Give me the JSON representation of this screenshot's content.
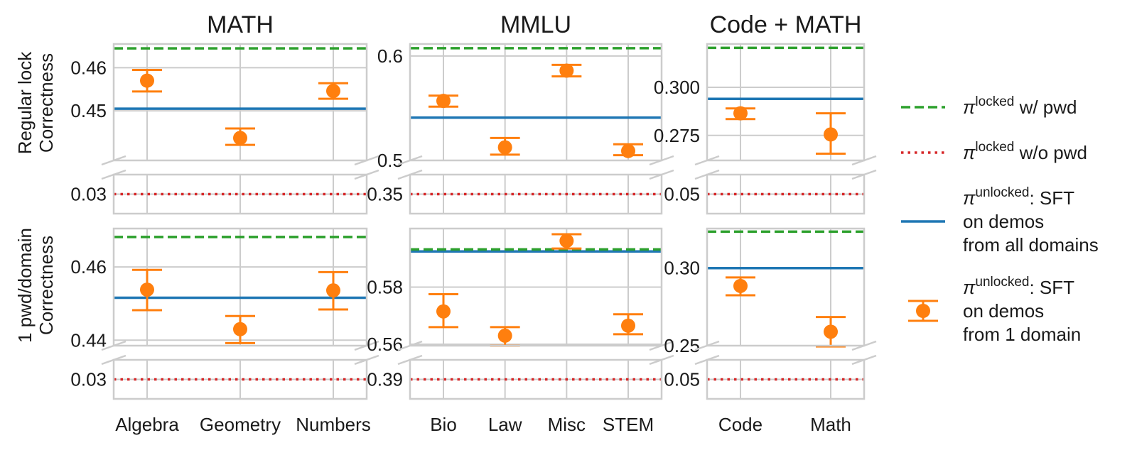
{
  "chart_data": {
    "type": "scatter",
    "description_free": true,
    "column_titles": [
      "MATH",
      "MMLU",
      "Code + MATH"
    ],
    "row_labels": [
      [
        "Regular lock",
        "Correctness"
      ],
      [
        "1 pwd/domain",
        "Correctness"
      ]
    ],
    "colors": {
      "locked_with_pwd": "#2ca02c",
      "locked_without_pwd": "#d62728",
      "unlocked_all": "#1f77b4",
      "unlocked_one": "#ff7f0e",
      "grid": "#cccccc"
    },
    "panels": [
      {
        "row": 0,
        "col": 0,
        "categories": [
          "Algebra",
          "Geometry",
          "Numbers"
        ],
        "upper_ylim": [
          0.4385,
          0.4655
        ],
        "upper_ticks": [
          "0.45",
          "0.46"
        ],
        "upper_tick_values": [
          0.45,
          0.46
        ],
        "lower_ylim": [
          0.0285,
          0.0315
        ],
        "lower_ticks": [
          "0.03"
        ],
        "lower_tick_values": [
          0.03
        ],
        "locked_with_pwd": 0.4645,
        "locked_without_pwd": 0.03,
        "unlocked_all": 0.4505,
        "points": [
          {
            "value": 0.457,
            "err_low": 0.4545,
            "err_high": 0.4595
          },
          {
            "value": 0.4437,
            "err_low": 0.4421,
            "err_high": 0.4459
          },
          {
            "value": 0.4546,
            "err_low": 0.4528,
            "err_high": 0.4564
          }
        ]
      },
      {
        "row": 0,
        "col": 1,
        "categories": [
          "Bio",
          "Law",
          "Misc",
          "STEM"
        ],
        "upper_ylim": [
          0.5,
          0.6115
        ],
        "upper_ticks": [
          "0.5",
          "0.6"
        ],
        "upper_tick_values": [
          0.5,
          0.6
        ],
        "lower_ylim": [
          0.34,
          0.36
        ],
        "lower_ticks": [
          "0.35"
        ],
        "lower_tick_values": [
          0.35
        ],
        "locked_with_pwd": 0.6075,
        "locked_without_pwd": 0.35,
        "unlocked_all": 0.541,
        "points": [
          {
            "value": 0.557,
            "err_low": 0.5515,
            "err_high": 0.562
          },
          {
            "value": 0.5125,
            "err_low": 0.5055,
            "err_high": 0.5215
          },
          {
            "value": 0.586,
            "err_low": 0.5805,
            "err_high": 0.5915
          },
          {
            "value": 0.509,
            "err_low": 0.505,
            "err_high": 0.5155
          }
        ]
      },
      {
        "row": 0,
        "col": 2,
        "categories": [
          "Code",
          "Math"
        ],
        "upper_ylim": [
          0.262,
          0.3225
        ],
        "upper_ticks": [
          "0.275",
          "0.300"
        ],
        "upper_tick_values": [
          0.275,
          0.3
        ],
        "lower_ylim": [
          0.045,
          0.055
        ],
        "lower_ticks": [
          "0.05"
        ],
        "lower_tick_values": [
          0.05
        ],
        "locked_with_pwd": 0.3205,
        "locked_without_pwd": 0.05,
        "unlocked_all": 0.294,
        "points": [
          {
            "value": 0.2865,
            "err_low": 0.2835,
            "err_high": 0.289
          },
          {
            "value": 0.2755,
            "err_low": 0.2655,
            "err_high": 0.2865
          }
        ]
      },
      {
        "row": 1,
        "col": 0,
        "categories": [
          "Algebra",
          "Geometry",
          "Numbers"
        ],
        "upper_ylim": [
          0.4385,
          0.4705
        ],
        "upper_ticks": [
          "0.44",
          "0.46"
        ],
        "upper_tick_values": [
          0.44,
          0.46
        ],
        "lower_ylim": [
          0.0285,
          0.0315
        ],
        "lower_ticks": [
          "0.03"
        ],
        "lower_tick_values": [
          0.03
        ],
        "locked_with_pwd": 0.4682,
        "locked_without_pwd": 0.03,
        "unlocked_all": 0.4516,
        "points": [
          {
            "value": 0.4538,
            "err_low": 0.4482,
            "err_high": 0.4592
          },
          {
            "value": 0.443,
            "err_low": 0.4392,
            "err_high": 0.4466
          },
          {
            "value": 0.4536,
            "err_low": 0.4484,
            "err_high": 0.4586
          }
        ]
      },
      {
        "row": 1,
        "col": 1,
        "categories": [
          "Bio",
          "Law",
          "Misc",
          "STEM"
        ],
        "upper_ylim": [
          0.5595,
          0.6005
        ],
        "upper_ticks": [
          "0.56",
          "0.58"
        ],
        "upper_tick_values": [
          0.56,
          0.58
        ],
        "lower_ylim": [
          0.385,
          0.395
        ],
        "lower_ticks": [
          "0.39"
        ],
        "lower_tick_values": [
          0.39
        ],
        "locked_with_pwd": 0.5932,
        "locked_without_pwd": 0.39,
        "unlocked_all": 0.5925,
        "points": [
          {
            "value": 0.5715,
            "err_low": 0.566,
            "err_high": 0.5775
          },
          {
            "value": 0.563,
            "err_low": 0.5595,
            "err_high": 0.566
          },
          {
            "value": 0.5962,
            "err_low": 0.5935,
            "err_high": 0.5985
          },
          {
            "value": 0.5665,
            "err_low": 0.5635,
            "err_high": 0.5705
          }
        ]
      },
      {
        "row": 1,
        "col": 2,
        "categories": [
          "Code",
          "Math"
        ],
        "upper_ylim": [
          0.25,
          0.3255
        ],
        "upper_ticks": [
          "0.25",
          "0.30"
        ],
        "upper_tick_values": [
          0.25,
          0.3
        ],
        "lower_ylim": [
          0.045,
          0.055
        ],
        "lower_ticks": [
          "0.05"
        ],
        "lower_tick_values": [
          0.05
        ],
        "locked_with_pwd": 0.3235,
        "locked_without_pwd": 0.05,
        "unlocked_all": 0.3,
        "points": [
          {
            "value": 0.2885,
            "err_low": 0.2825,
            "err_high": 0.294
          },
          {
            "value": 0.259,
            "err_low": 0.2495,
            "err_high": 0.2685
          }
        ]
      }
    ],
    "legend": {
      "position": "right",
      "entries": [
        {
          "key": "locked_with_pwd",
          "style": "dashed",
          "sym": "π",
          "sup": "locked",
          "lines": [
            " w/ pwd"
          ]
        },
        {
          "key": "locked_without_pwd",
          "style": "dotted",
          "sym": "π",
          "sup": "locked",
          "lines": [
            " w/o pwd"
          ]
        },
        {
          "key": "unlocked_all",
          "style": "solid",
          "sym": "π",
          "sup": "unlocked",
          "lines": [
            ": SFT",
            "on demos",
            "from all domains"
          ]
        },
        {
          "key": "unlocked_one",
          "style": "errorbar",
          "sym": "π",
          "sup": "unlocked",
          "lines": [
            ": SFT",
            "on demos",
            "from 1 domain"
          ]
        }
      ]
    }
  }
}
